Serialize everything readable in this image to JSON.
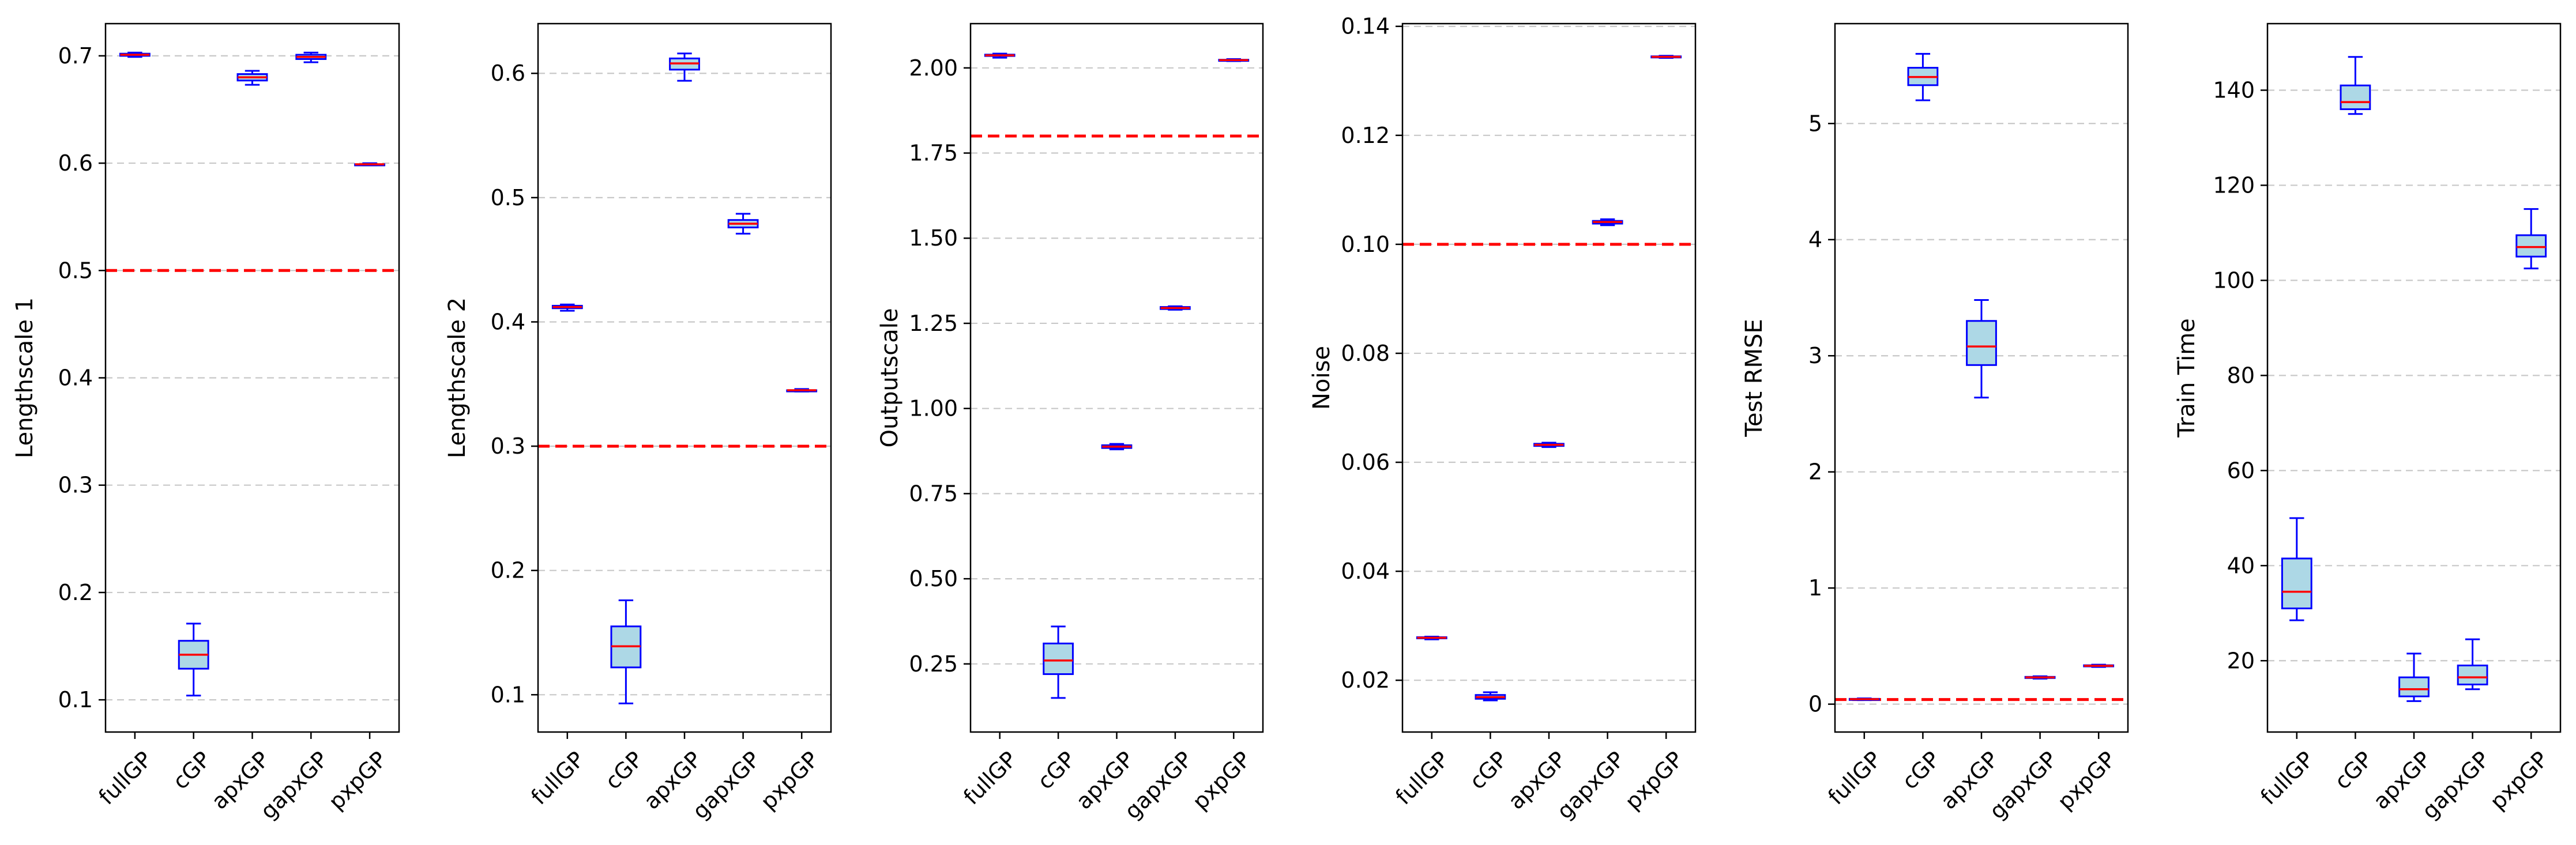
{
  "chart_data": [
    {
      "type": "box",
      "ylabel": "Lengthscale 1",
      "categories": [
        "fullGP",
        "cGP",
        "apxGP",
        "gapxGP",
        "pxpGP"
      ],
      "yticks": [
        "0.1",
        "0.2",
        "0.3",
        "0.4",
        "0.5",
        "0.6",
        "0.7"
      ],
      "ylim": [
        0.07,
        0.73
      ],
      "reference_line": 0.5,
      "boxes": [
        {
          "min": 0.699,
          "q1": 0.7,
          "median": 0.701,
          "q3": 0.702,
          "max": 0.703
        },
        {
          "min": 0.104,
          "q1": 0.129,
          "median": 0.142,
          "q3": 0.155,
          "max": 0.171
        },
        {
          "min": 0.673,
          "q1": 0.677,
          "median": 0.68,
          "q3": 0.683,
          "max": 0.686
        },
        {
          "min": 0.694,
          "q1": 0.697,
          "median": 0.699,
          "q3": 0.701,
          "max": 0.703
        },
        {
          "min": 0.598,
          "q1": 0.599,
          "median": 0.599,
          "q3": 0.599,
          "max": 0.6
        }
      ]
    },
    {
      "type": "box",
      "ylabel": "Lengthscale 2",
      "categories": [
        "fullGP",
        "cGP",
        "apxGP",
        "gapxGP",
        "pxpGP"
      ],
      "yticks": [
        "0.1",
        "0.2",
        "0.3",
        "0.4",
        "0.5",
        "0.6"
      ],
      "ylim": [
        0.07,
        0.64
      ],
      "reference_line": 0.3,
      "boxes": [
        {
          "min": 0.409,
          "q1": 0.411,
          "median": 0.412,
          "q3": 0.413,
          "max": 0.414
        },
        {
          "min": 0.093,
          "q1": 0.122,
          "median": 0.139,
          "q3": 0.155,
          "max": 0.176
        },
        {
          "min": 0.594,
          "q1": 0.603,
          "median": 0.608,
          "q3": 0.612,
          "max": 0.616
        },
        {
          "min": 0.471,
          "q1": 0.476,
          "median": 0.479,
          "q3": 0.482,
          "max": 0.487
        },
        {
          "min": 0.344,
          "q1": 0.345,
          "median": 0.345,
          "q3": 0.345,
          "max": 0.346
        }
      ]
    },
    {
      "type": "box",
      "ylabel": "Outputscale",
      "categories": [
        "fullGP",
        "cGP",
        "apxGP",
        "gapxGP",
        "pxpGP"
      ],
      "yticks": [
        "0.25",
        "0.50",
        "0.75",
        "1.00",
        "1.25",
        "1.50",
        "1.75",
        "2.00"
      ],
      "ylim": [
        0.05,
        2.13
      ],
      "reference_line": 1.8,
      "boxes": [
        {
          "min": 2.03,
          "q1": 2.035,
          "median": 2.037,
          "q3": 2.039,
          "max": 2.042
        },
        {
          "min": 0.15,
          "q1": 0.22,
          "median": 0.26,
          "q3": 0.31,
          "max": 0.36
        },
        {
          "min": 0.88,
          "q1": 0.884,
          "median": 0.888,
          "q3": 0.892,
          "max": 0.896
        },
        {
          "min": 1.29,
          "q1": 1.292,
          "median": 1.295,
          "q3": 1.298,
          "max": 1.3
        },
        {
          "min": 2.02,
          "q1": 2.022,
          "median": 2.023,
          "q3": 2.024,
          "max": 2.026
        }
      ]
    },
    {
      "type": "box",
      "ylabel": "Noise",
      "categories": [
        "fullGP",
        "cGP",
        "apxGP",
        "gapxGP",
        "pxpGP"
      ],
      "yticks": [
        "0.02",
        "0.04",
        "0.06",
        "0.08",
        "0.10",
        "0.12",
        "0.14"
      ],
      "ylim": [
        0.0105,
        0.1405
      ],
      "reference_line": 0.1,
      "boxes": [
        {
          "min": 0.0275,
          "q1": 0.0277,
          "median": 0.0278,
          "q3": 0.0279,
          "max": 0.028
        },
        {
          "min": 0.0163,
          "q1": 0.0166,
          "median": 0.0169,
          "q3": 0.0173,
          "max": 0.0178
        },
        {
          "min": 0.0628,
          "q1": 0.063,
          "median": 0.0632,
          "q3": 0.0634,
          "max": 0.0636
        },
        {
          "min": 0.1035,
          "q1": 0.1038,
          "median": 0.1041,
          "q3": 0.1043,
          "max": 0.1046
        },
        {
          "min": 0.1342,
          "q1": 0.1343,
          "median": 0.1344,
          "q3": 0.1345,
          "max": 0.1346
        }
      ]
    },
    {
      "type": "box",
      "ylabel": "Test RMSE",
      "categories": [
        "fullGP",
        "cGP",
        "apxGP",
        "gapxGP",
        "pxpGP"
      ],
      "yticks": [
        "0",
        "1",
        "2",
        "3",
        "4",
        "5"
      ],
      "ylim": [
        -0.24,
        5.86
      ],
      "reference_line": 0.04,
      "boxes": [
        {
          "min": 0.035,
          "q1": 0.04,
          "median": 0.043,
          "q3": 0.046,
          "max": 0.05
        },
        {
          "min": 5.2,
          "q1": 5.33,
          "median": 5.4,
          "q3": 5.48,
          "max": 5.6
        },
        {
          "min": 2.64,
          "q1": 2.92,
          "median": 3.08,
          "q3": 3.3,
          "max": 3.48
        },
        {
          "min": 0.22,
          "q1": 0.225,
          "median": 0.23,
          "q3": 0.235,
          "max": 0.24
        },
        {
          "min": 0.32,
          "q1": 0.325,
          "median": 0.33,
          "q3": 0.335,
          "max": 0.34
        }
      ]
    },
    {
      "type": "box",
      "ylabel": "Train Time",
      "categories": [
        "fullGP",
        "cGP",
        "apxGP",
        "gapxGP",
        "pxpGP"
      ],
      "yticks": [
        "20",
        "40",
        "60",
        "80",
        "100",
        "120",
        "140"
      ],
      "ylim": [
        5,
        154
      ],
      "reference_line": null,
      "boxes": [
        {
          "min": 28.5,
          "q1": 31.0,
          "median": 34.5,
          "q3": 41.5,
          "max": 50.0
        },
        {
          "min": 135.0,
          "q1": 136.0,
          "median": 137.5,
          "q3": 141.0,
          "max": 147.0
        },
        {
          "min": 11.5,
          "q1": 12.5,
          "median": 14.0,
          "q3": 16.5,
          "max": 21.5
        },
        {
          "min": 14.0,
          "q1": 15.0,
          "median": 16.5,
          "q3": 19.0,
          "max": 24.5
        },
        {
          "min": 102.5,
          "q1": 105.0,
          "median": 107.0,
          "q3": 109.5,
          "max": 115.0
        }
      ]
    }
  ],
  "colors": {
    "box_fill": "#add8e6",
    "box_edge": "#0000ff",
    "median": "#ff0000",
    "reference_line": "#ff0000",
    "grid": "#c8c8c8",
    "axis": "#000000"
  }
}
